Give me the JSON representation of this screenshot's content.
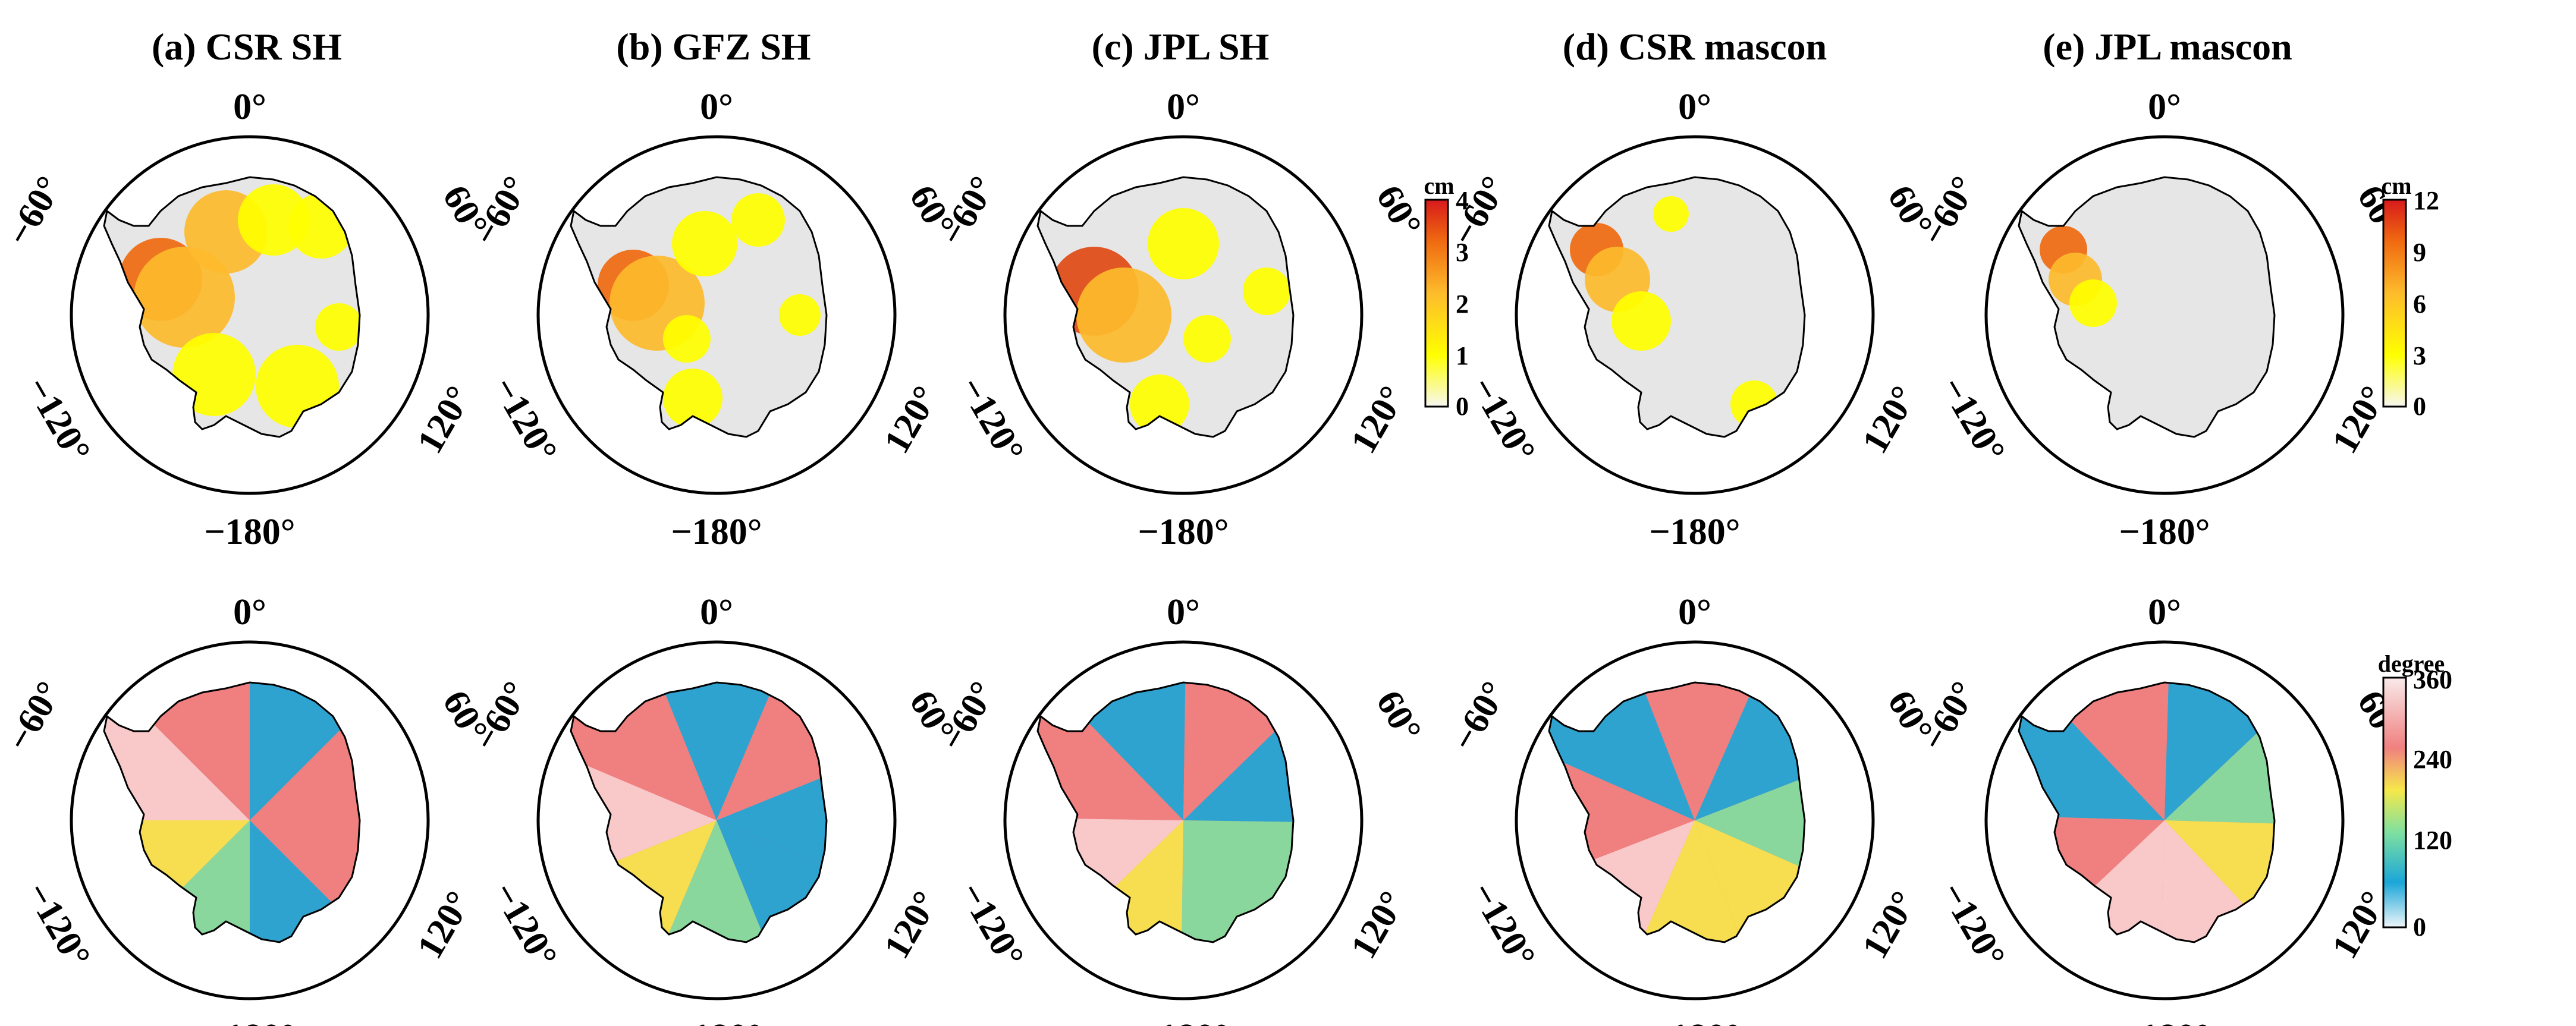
{
  "panels": [
    {
      "id": "a",
      "title": "(a) CSR SH"
    },
    {
      "id": "b",
      "title": "(b) GFZ SH"
    },
    {
      "id": "c",
      "title": "(c) JPL SH"
    },
    {
      "id": "d",
      "title": "(d) CSR mascon"
    },
    {
      "id": "e",
      "title": "(e) JPL mascon"
    }
  ],
  "longitude_labels": {
    "top": "0°",
    "upper_left": "−60°",
    "upper_right": "60°",
    "lower_left": "−120°",
    "lower_right": "120°",
    "bottom": "−180°"
  },
  "colorbars": {
    "amplitude_sh": {
      "unit": "cm",
      "ticks": [
        "4",
        "3",
        "2",
        "1",
        "0"
      ],
      "colors": [
        "#d7191c",
        "#f06a10",
        "#fdbb2c",
        "#ffff00",
        "#f7f7f2"
      ]
    },
    "amplitude_mascon": {
      "unit": "cm",
      "ticks": [
        "12",
        "9",
        "6",
        "3",
        "0"
      ],
      "colors": [
        "#d7191c",
        "#f06a10",
        "#fdbb2c",
        "#ffff00",
        "#f7f7f2"
      ]
    },
    "phase": {
      "unit": "degree",
      "ticks": [
        "360",
        "240",
        "120",
        "0"
      ],
      "colors": [
        "#f9eaea",
        "#f08080",
        "#f6e84a",
        "#7ee0a0",
        "#1aa6d8",
        "#eef6fa"
      ]
    }
  },
  "colors": {
    "ice": "#e6e6e6",
    "outline": "#000000"
  }
}
